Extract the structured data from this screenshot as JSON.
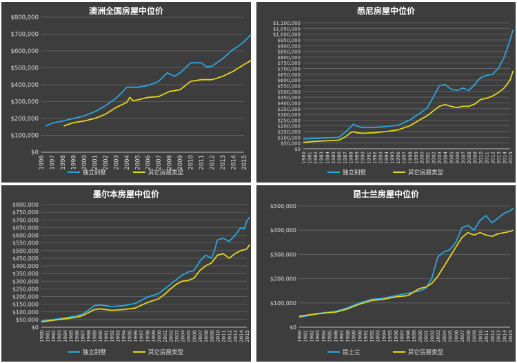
{
  "chart_data": [
    {
      "type": "line",
      "title": "澳洲全国房屋中位价",
      "xlabel": "",
      "ylabel": "",
      "x": [
        1996,
        1997,
        1998,
        1999,
        2000,
        2001,
        2002,
        2003,
        2004,
        2005,
        2006,
        2007,
        2008,
        2009,
        2010,
        2011,
        2012,
        2013,
        2014,
        2015
      ],
      "ylim": [
        0,
        800000
      ],
      "yticks": [
        "$0",
        "$100,000",
        "$200,000",
        "$300,000",
        "$400,000",
        "$500,000",
        "$600,000",
        "$700,000",
        "$800,000"
      ],
      "xticks": [
        "1996",
        "1997",
        "1998",
        "1999",
        "2000",
        "2001",
        "2002",
        "2003",
        "2004",
        "2005",
        "2006",
        "2007",
        "2008",
        "2009",
        "2010",
        "2011",
        "2012",
        "2013",
        "2014",
        "2015"
      ],
      "grid": true,
      "legend": "bottom",
      "series": [
        {
          "name": "独立别墅",
          "color": "#2aa7e0",
          "x": [
            1996.4,
            1997,
            1998,
            1999,
            2000,
            2001,
            2002,
            2003,
            2003.5,
            2004,
            2005,
            2006,
            2007,
            2007.8,
            2008.5,
            2009,
            2009.5,
            2010,
            2011,
            2011.5,
            2012,
            2013,
            2014,
            2014.5,
            2015,
            2015.7
          ],
          "values": [
            155000,
            172000,
            185000,
            200000,
            215000,
            240000,
            275000,
            320000,
            350000,
            385000,
            385000,
            395000,
            420000,
            470000,
            450000,
            470000,
            500000,
            530000,
            530000,
            505000,
            510000,
            555000,
            610000,
            630000,
            655000,
            700000
          ]
        },
        {
          "name": "其它房屋类型",
          "color": "#e8d619",
          "x": [
            1998.1,
            1998.5,
            1999,
            2000,
            2001,
            2002,
            2003,
            2004,
            2004.3,
            2004.6,
            2005,
            2006,
            2007,
            2008,
            2009,
            2010,
            2011,
            2012,
            2013,
            2014,
            2015,
            2015.7
          ],
          "values": [
            155000,
            165000,
            175000,
            185000,
            200000,
            225000,
            265000,
            295000,
            325000,
            305000,
            310000,
            325000,
            330000,
            360000,
            370000,
            420000,
            430000,
            430000,
            450000,
            480000,
            520000,
            545000
          ]
        }
      ]
    },
    {
      "type": "line",
      "title": "悉尼房屋中位价",
      "xlabel": "",
      "ylabel": "",
      "x": [
        1980,
        1981,
        1982,
        1983,
        1984,
        1985,
        1986,
        1987,
        1988,
        1989,
        1990,
        1991,
        1992,
        1993,
        1994,
        1995,
        1996,
        1997,
        1998,
        1999,
        2000,
        2001,
        2002,
        2003,
        2004,
        2005,
        2006,
        2007,
        2008,
        2009,
        2010,
        2011,
        2012,
        2013,
        2014,
        2015
      ],
      "ylim": [
        0,
        1100000
      ],
      "yticks": [
        "$0",
        "$50,000",
        "$100,000",
        "$150,000",
        "$200,000",
        "$250,000",
        "$300,000",
        "$350,000",
        "$400,000",
        "$450,000",
        "$500,000",
        "$550,000",
        "$600,000",
        "$650,000",
        "$700,000",
        "$750,000",
        "$800,000",
        "$850,000",
        "$900,000",
        "$950,000",
        "$1,000,000",
        "$1,050,000",
        "$1,100,000"
      ],
      "xticks": [
        "1980",
        "1981",
        "1982",
        "1983",
        "1984",
        "1985",
        "1986",
        "1987",
        "1988",
        "1989",
        "1990",
        "1991",
        "1992",
        "1993",
        "1994",
        "1995",
        "1996",
        "1997",
        "1998",
        "1999",
        "2000",
        "2001",
        "2002",
        "2003",
        "2004",
        "2005",
        "2006",
        "2007",
        "2008",
        "2009",
        "2010",
        "2011",
        "2012",
        "2013",
        "2014",
        "2015"
      ],
      "grid": true,
      "legend": "bottom",
      "series": [
        {
          "name": "独立别墅",
          "color": "#2aa7e0",
          "x": [
            1980,
            1982,
            1984,
            1986,
            1987,
            1988,
            1988.5,
            1989,
            1990,
            1992,
            1994,
            1996,
            1998,
            2000,
            2001,
            2002,
            2003,
            2004,
            2005,
            2006,
            2007,
            2008,
            2009,
            2010,
            2011,
            2012,
            2013,
            2014,
            2015,
            2015.5
          ],
          "values": [
            85000,
            90000,
            95000,
            100000,
            140000,
            190000,
            215000,
            200000,
            185000,
            185000,
            195000,
            205000,
            250000,
            320000,
            360000,
            450000,
            550000,
            560000,
            520000,
            510000,
            530000,
            510000,
            560000,
            620000,
            640000,
            650000,
            700000,
            800000,
            950000,
            1040000
          ]
        },
        {
          "name": "其它房屋类型",
          "color": "#e8d619",
          "x": [
            1980,
            1982,
            1984,
            1986,
            1987,
            1988,
            1988.5,
            1989,
            1990,
            1992,
            1994,
            1996,
            1998,
            2000,
            2001,
            2002,
            2003,
            2004,
            2005,
            2006,
            2007,
            2008,
            2009,
            2010,
            2011,
            2012,
            2013,
            2014,
            2015,
            2015.5
          ],
          "values": [
            55000,
            65000,
            70000,
            75000,
            100000,
            140000,
            150000,
            140000,
            135000,
            140000,
            150000,
            165000,
            200000,
            260000,
            290000,
            330000,
            370000,
            385000,
            370000,
            360000,
            370000,
            370000,
            390000,
            430000,
            440000,
            460000,
            490000,
            530000,
            600000,
            680000
          ]
        }
      ]
    },
    {
      "type": "line",
      "title": "墨尔本房屋中位价",
      "xlabel": "",
      "ylabel": "",
      "x": [
        1980,
        1981,
        1982,
        1983,
        1984,
        1985,
        1986,
        1987,
        1988,
        1989,
        1990,
        1991,
        1992,
        1993,
        1994,
        1995,
        1996,
        1997,
        1998,
        1999,
        2000,
        2001,
        2002,
        2003,
        2004,
        2005,
        2006,
        2007,
        2008,
        2009,
        2010,
        2011,
        2012,
        2013,
        2014,
        2015
      ],
      "ylim": [
        0,
        800000
      ],
      "yticks": [
        "$0",
        "$50,000",
        "$100,000",
        "$150,000",
        "$200,000",
        "$250,000",
        "$300,000",
        "$350,000",
        "$400,000",
        "$450,000",
        "$500,000",
        "$550,000",
        "$600,000",
        "$650,000",
        "$700,000",
        "$750,000",
        "$800,000"
      ],
      "xticks": [
        "1980",
        "1981",
        "1982",
        "1983",
        "1984",
        "1985",
        "1986",
        "1987",
        "1988",
        "1989",
        "1990",
        "1991",
        "1992",
        "1993",
        "1994",
        "1995",
        "1996",
        "1997",
        "1998",
        "1999",
        "2000",
        "2001",
        "2002",
        "2003",
        "2004",
        "2005",
        "2006",
        "2007",
        "2008",
        "2009",
        "2010",
        "2011",
        "2012",
        "2013",
        "2014",
        "2015"
      ],
      "grid": true,
      "legend": "bottom",
      "series": [
        {
          "name": "独立别墅",
          "color": "#2aa7e0",
          "x": [
            1980,
            1982,
            1984,
            1986,
            1987,
            1988,
            1989,
            1990,
            1992,
            1994,
            1996,
            1998,
            2000,
            2001,
            2002,
            2003,
            2004,
            2005,
            2006,
            2007,
            2008,
            2009,
            2009.5,
            2010,
            2011,
            2012,
            2013,
            2014,
            2014.5,
            2015,
            2015.5
          ],
          "values": [
            40000,
            50000,
            60000,
            75000,
            85000,
            110000,
            140000,
            145000,
            135000,
            140000,
            155000,
            195000,
            220000,
            250000,
            280000,
            310000,
            340000,
            360000,
            370000,
            430000,
            470000,
            450000,
            500000,
            570000,
            580000,
            560000,
            600000,
            650000,
            640000,
            690000,
            720000
          ]
        },
        {
          "name": "其它房屋类型",
          "color": "#e8d619",
          "x": [
            1980,
            1982,
            1984,
            1986,
            1987,
            1988,
            1989,
            1990,
            1992,
            1994,
            1996,
            1998,
            2000,
            2001,
            2002,
            2003,
            2004,
            2005,
            2006,
            2007,
            2008,
            2009,
            2010,
            2011,
            2012,
            2013,
            2014,
            2015,
            2015.5
          ],
          "values": [
            35000,
            45000,
            55000,
            65000,
            75000,
            95000,
            115000,
            120000,
            110000,
            115000,
            125000,
            160000,
            185000,
            215000,
            250000,
            280000,
            300000,
            305000,
            320000,
            370000,
            400000,
            420000,
            470000,
            480000,
            450000,
            480000,
            500000,
            510000,
            540000
          ]
        }
      ]
    },
    {
      "type": "line",
      "title": "昆士兰房屋中位价",
      "xlabel": "",
      "ylabel": "",
      "x": [
        1980,
        1981,
        1982,
        1983,
        1984,
        1985,
        1986,
        1987,
        1988,
        1989,
        1990,
        1991,
        1992,
        1993,
        1994,
        1995,
        1996,
        1997,
        1998,
        1999,
        2000,
        2001,
        2002,
        2003,
        2004,
        2005,
        2006,
        2007,
        2008,
        2009,
        2010,
        2011,
        2012,
        2013,
        2014,
        2015
      ],
      "ylim": [
        0,
        500000
      ],
      "yticks": [
        "$0",
        "$100,000",
        "$200,000",
        "$300,000",
        "$400,000",
        "$500,000"
      ],
      "xticks": [
        "1980",
        "1981",
        "1982",
        "1983",
        "1984",
        "1985",
        "1986",
        "1987",
        "1988",
        "1989",
        "1990",
        "1991",
        "1992",
        "1993",
        "1994",
        "1995",
        "1996",
        "1997",
        "1998",
        "1999",
        "2000",
        "2001",
        "2002",
        "2003",
        "2004",
        "2005",
        "2006",
        "2007",
        "2008",
        "2009",
        "2010",
        "2011",
        "2012",
        "2013",
        "2014",
        "2015"
      ],
      "grid": true,
      "legend": "bottom",
      "series": [
        {
          "name": "昆士兰",
          "color": "#2aa7e0",
          "x": [
            1980,
            1982,
            1984,
            1986,
            1988,
            1990,
            1992,
            1994,
            1996,
            1998,
            2000,
            2001,
            2002,
            2003,
            2004,
            2005,
            2006,
            2007,
            2008,
            2009,
            2010,
            2011,
            2012,
            2013,
            2014,
            2015,
            2015.5
          ],
          "values": [
            40000,
            50000,
            60000,
            65000,
            80000,
            100000,
            115000,
            120000,
            130000,
            140000,
            150000,
            160000,
            200000,
            290000,
            310000,
            320000,
            350000,
            410000,
            420000,
            400000,
            440000,
            460000,
            430000,
            450000,
            470000,
            480000,
            490000
          ]
        },
        {
          "name": "其它房屋类型",
          "color": "#e8d619",
          "x": [
            1980,
            1982,
            1984,
            1986,
            1988,
            1990,
            1992,
            1994,
            1996,
            1998,
            2000,
            2001,
            2002,
            2003,
            2004,
            2005,
            2006,
            2007,
            2008,
            2009,
            2010,
            2011,
            2012,
            2013,
            2014,
            2015,
            2015.5
          ],
          "values": [
            45000,
            52000,
            58000,
            62000,
            75000,
            95000,
            110000,
            115000,
            125000,
            130000,
            160000,
            165000,
            180000,
            210000,
            250000,
            290000,
            330000,
            370000,
            390000,
            380000,
            390000,
            380000,
            375000,
            385000,
            390000,
            395000,
            400000
          ]
        }
      ]
    }
  ]
}
